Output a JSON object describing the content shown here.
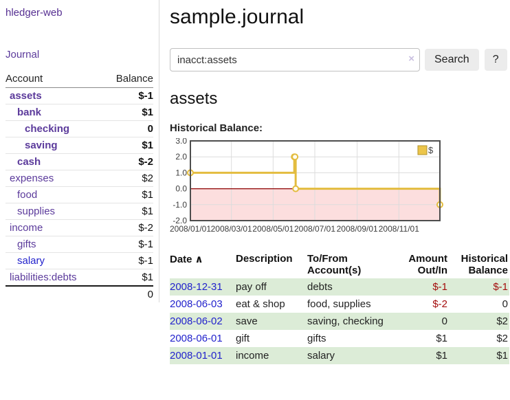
{
  "app": {
    "brand": "hledger-web",
    "nav_journal": "Journal"
  },
  "colors": {
    "purple": "#5b3a9b",
    "link_blue": "#2222cc",
    "negative": "#a40d0d",
    "negative_soft": "#c08383",
    "stripe_green": "#dcecd7",
    "chart_gold": "#e3bc3f",
    "chart_negative_region": "#fcdede",
    "chart_zero_line": "#8b0000"
  },
  "sidebar": {
    "headers": {
      "account": "Account",
      "balance": "Balance"
    },
    "rows": [
      {
        "name": "assets",
        "indent": 0,
        "bold": true,
        "name_color": "purple",
        "balance": "$-1",
        "balance_class": "neg"
      },
      {
        "name": "bank",
        "indent": 1,
        "bold": true,
        "name_color": "purple",
        "balance": "$1",
        "balance_class": ""
      },
      {
        "name": "checking",
        "indent": 2,
        "bold": true,
        "name_color": "purple",
        "balance": "0",
        "balance_class": ""
      },
      {
        "name": "saving",
        "indent": 2,
        "bold": true,
        "name_color": "purple",
        "balance": "$1",
        "balance_class": ""
      },
      {
        "name": "cash",
        "indent": 1,
        "bold": true,
        "name_color": "purple",
        "balance": "$-2",
        "balance_class": "neg"
      },
      {
        "name": "expenses",
        "indent": 0,
        "bold": false,
        "name_color": "purple",
        "balance": "$2",
        "balance_class": ""
      },
      {
        "name": "food",
        "indent": 1,
        "bold": false,
        "name_color": "purple",
        "balance": "$1",
        "balance_class": ""
      },
      {
        "name": "supplies",
        "indent": 1,
        "bold": false,
        "name_color": "purple",
        "balance": "$1",
        "balance_class": ""
      },
      {
        "name": "income",
        "indent": 0,
        "bold": false,
        "name_color": "purple",
        "balance": "$-2",
        "balance_class": "negsoft"
      },
      {
        "name": "gifts",
        "indent": 1,
        "bold": false,
        "name_color": "purple",
        "balance": "$-1",
        "balance_class": "negsoft"
      },
      {
        "name": "salary",
        "indent": 1,
        "bold": false,
        "name_color": "blue",
        "balance": "$-1",
        "balance_class": "negsoft"
      },
      {
        "name": "liabilities:debts",
        "indent": 0,
        "bold": false,
        "name_color": "purple",
        "balance": "$1",
        "balance_class": ""
      }
    ],
    "total": "0"
  },
  "main": {
    "title": "sample.journal",
    "search": {
      "value": "inacct:assets",
      "clear_icon": "×",
      "search_label": "Search",
      "help_label": "?"
    },
    "account_heading": "assets",
    "chart_label": "Historical Balance:"
  },
  "chart_data": {
    "type": "line",
    "step": true,
    "title": "Historical Balance:",
    "series": [
      {
        "name": "$",
        "color": "#e3bc3f",
        "points": [
          [
            "2008-01-01",
            1
          ],
          [
            "2008-06-01",
            2
          ],
          [
            "2008-06-02",
            2
          ],
          [
            "2008-06-03",
            0
          ],
          [
            "2008-12-31",
            -1
          ]
        ]
      }
    ],
    "xrange": [
      "2008-01-01",
      "2008-12-31"
    ],
    "ylim": [
      -2.0,
      3.0
    ],
    "yticks": [
      "3.0",
      "2.0",
      "1.0",
      "0.0",
      "-1.0",
      "-2.0"
    ],
    "xticks": [
      "2008/01/01",
      "2008/03/01",
      "2008/05/01",
      "2008/07/01",
      "2008/09/01",
      "2008/11/01"
    ],
    "grid": true,
    "legend_position": "top-right",
    "legend": [
      {
        "label": "$",
        "color": "#ecc54a"
      }
    ],
    "negative_region_color": "#fcdede",
    "zero_line_color": "#8b0000"
  },
  "register": {
    "headers": {
      "date": "Date",
      "sort_icon": "∧",
      "description": "Description",
      "accounts": "To/From Account(s)",
      "amount": "Amount Out/In",
      "balance": "Historical Balance"
    },
    "rows": [
      {
        "date": "2008-12-31",
        "description": "pay off",
        "accounts": "debts",
        "amount": "$-1",
        "amount_class": "neg",
        "balance": "$-1",
        "balance_class": "neg",
        "stripe": true
      },
      {
        "date": "2008-06-03",
        "description": "eat & shop",
        "accounts": "food, supplies",
        "amount": "$-2",
        "amount_class": "neg",
        "balance": "0",
        "balance_class": "",
        "stripe": false
      },
      {
        "date": "2008-06-02",
        "description": "save",
        "accounts": "saving, checking",
        "amount": "0",
        "amount_class": "",
        "balance": "$2",
        "balance_class": "",
        "stripe": true
      },
      {
        "date": "2008-06-01",
        "description": "gift",
        "accounts": "gifts",
        "amount": "$1",
        "amount_class": "",
        "balance": "$2",
        "balance_class": "",
        "stripe": false
      },
      {
        "date": "2008-01-01",
        "description": "income",
        "accounts": "salary",
        "amount": "$1",
        "amount_class": "",
        "balance": "$1",
        "balance_class": "",
        "stripe": true
      }
    ]
  }
}
